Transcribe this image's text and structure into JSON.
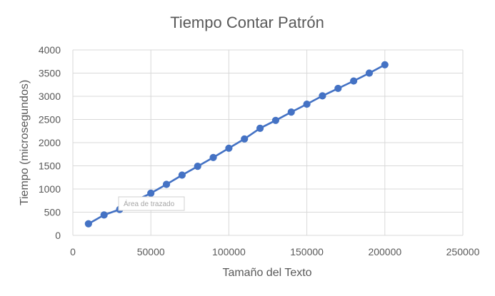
{
  "chart_data": {
    "type": "line",
    "title": "Tiempo Contar Patrón",
    "xlabel": "Tamaño del Texto",
    "ylabel": "Tiempo (microsegundos)",
    "xlim": [
      0,
      250000
    ],
    "ylim": [
      0,
      4000
    ],
    "x_ticks": [
      "0",
      "50000",
      "100000",
      "150000",
      "200000",
      "250000"
    ],
    "y_ticks": [
      "0",
      "500",
      "1000",
      "1500",
      "2000",
      "2500",
      "3000",
      "3500",
      "4000"
    ],
    "grid": true,
    "legend": "none",
    "marker": "circle",
    "color": "#4472c4",
    "series": [
      {
        "x": [
          10000,
          20000,
          30000,
          40000,
          50000,
          60000,
          70000,
          80000,
          90000,
          100000,
          110000,
          120000,
          130000,
          140000,
          150000,
          160000,
          170000,
          180000,
          190000,
          200000
        ],
        "values": [
          250,
          440,
          560,
          750,
          910,
          1100,
          1300,
          1490,
          1680,
          1880,
          2080,
          2310,
          2480,
          2660,
          2830,
          3010,
          3170,
          3330,
          3500,
          3680
        ]
      }
    ]
  },
  "tooltip": {
    "text": "Área de trazado"
  }
}
